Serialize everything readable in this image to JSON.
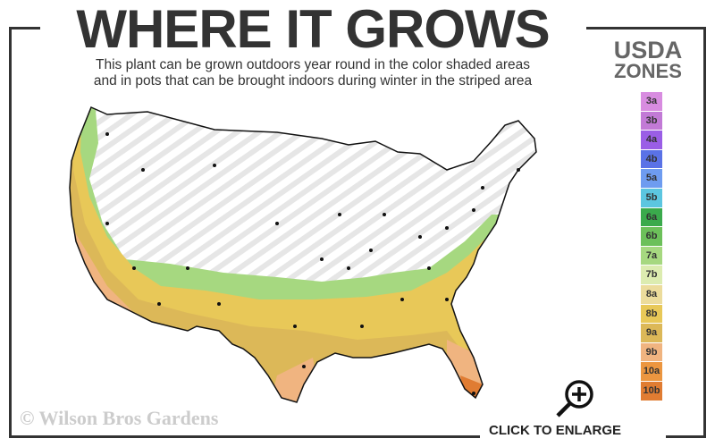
{
  "title": "WHERE IT GROWS",
  "subtitle_line1": "This plant can be grown outdoors year round in the color shaded areas",
  "subtitle_line2": "and in pots that can be brought indoors during winter in the striped area",
  "legend": {
    "title_line1": "USDA",
    "title_line2": "ZONES",
    "zones": [
      {
        "label": "3a",
        "color": "#d88ce0"
      },
      {
        "label": "3b",
        "color": "#c27ad6"
      },
      {
        "label": "4a",
        "color": "#9a5ee6"
      },
      {
        "label": "4b",
        "color": "#5a72e6"
      },
      {
        "label": "5a",
        "color": "#6e9cf0"
      },
      {
        "label": "5b",
        "color": "#5cc6e0"
      },
      {
        "label": "6a",
        "color": "#3aaa4c"
      },
      {
        "label": "6b",
        "color": "#6cc05a"
      },
      {
        "label": "7a",
        "color": "#a6d880"
      },
      {
        "label": "7b",
        "color": "#dcecb0"
      },
      {
        "label": "8a",
        "color": "#ecdc9c"
      },
      {
        "label": "8b",
        "color": "#e8c858"
      },
      {
        "label": "9a",
        "color": "#dcb858"
      },
      {
        "label": "9b",
        "color": "#f0b480"
      },
      {
        "label": "10a",
        "color": "#ec9640"
      },
      {
        "label": "10b",
        "color": "#e07c32"
      }
    ]
  },
  "copyright": "© Wilson Bros Gardens",
  "enlarge_label": "CLICK TO ENLARGE",
  "enlarge_icon": "zoom-in-magnifier-icon"
}
